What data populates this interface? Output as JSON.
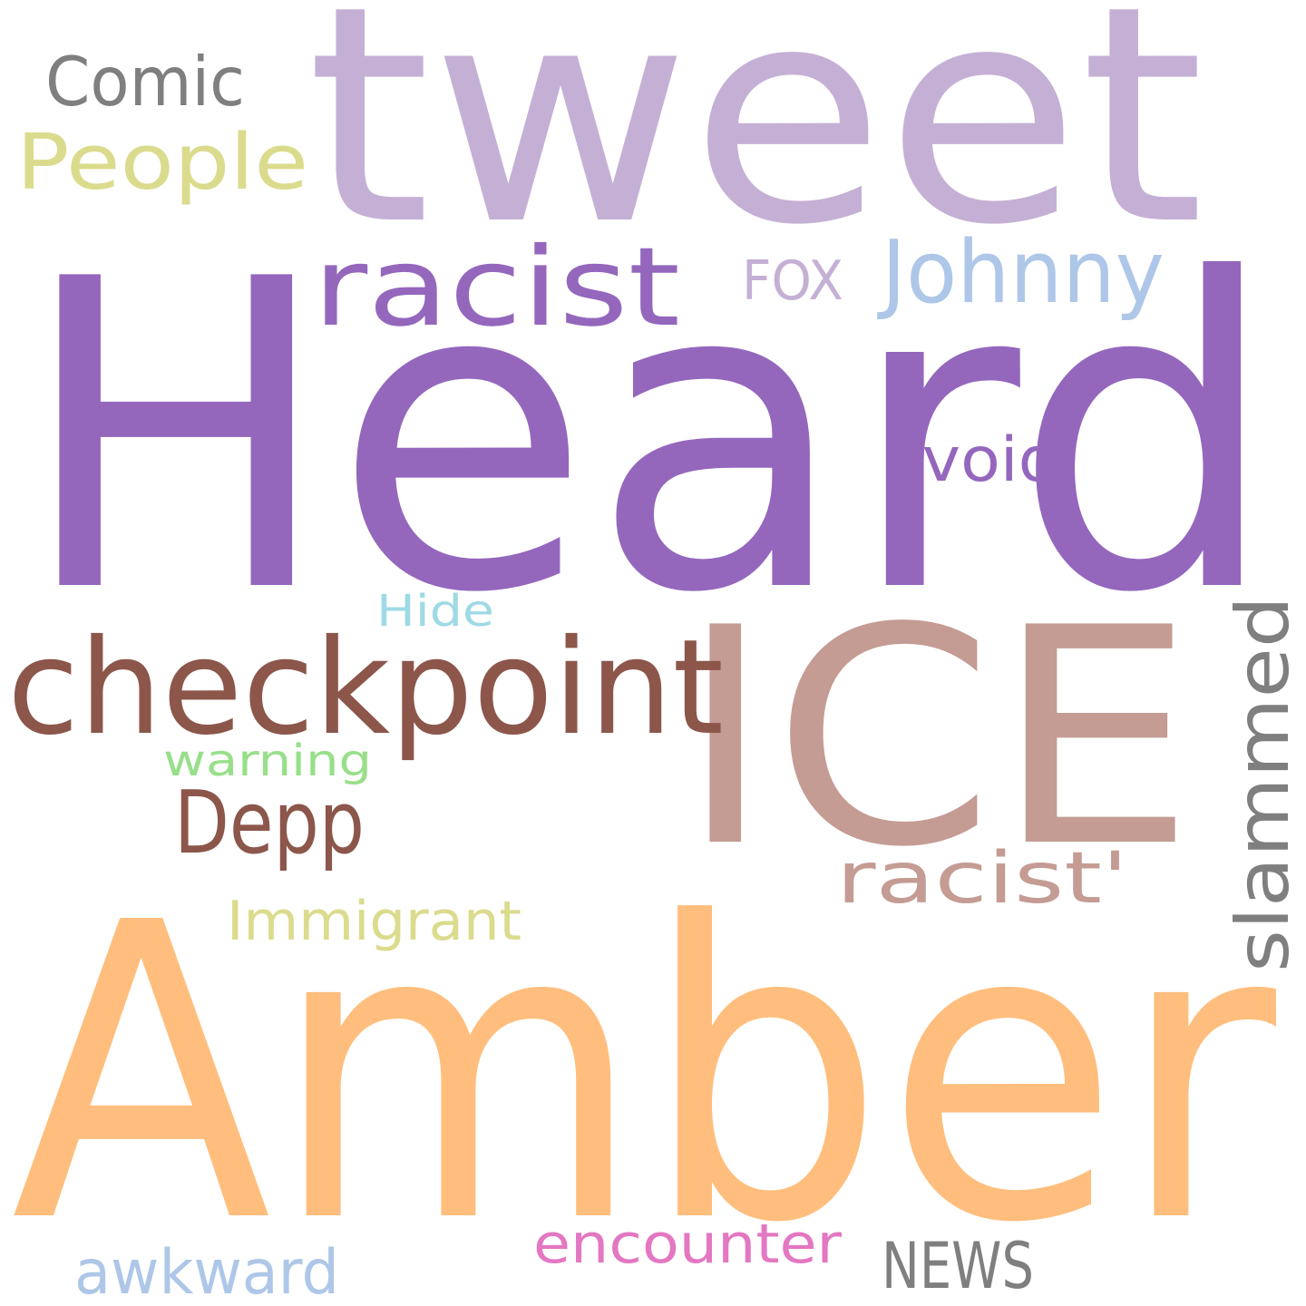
{
  "cloud": {
    "words": [
      {
        "text": "Heard",
        "color": "#9467bd"
      },
      {
        "text": "Amber",
        "color": "#ffbe7d"
      },
      {
        "text": "tweet",
        "color": "#c5b0d5"
      },
      {
        "text": "ICE",
        "color": "#c49c94"
      },
      {
        "text": "checkpoint",
        "color": "#8c564b"
      },
      {
        "text": "racist",
        "color": "#9467bd"
      },
      {
        "text": "Johnny",
        "color": "#aec7e8"
      },
      {
        "text": "slammed",
        "color": "#7f7f7f"
      },
      {
        "text": "Depp",
        "color": "#8c564b"
      },
      {
        "text": "People",
        "color": "#dbdb8d"
      },
      {
        "text": "Comic",
        "color": "#7f7f7f"
      },
      {
        "text": "racist'",
        "color": "#c49c94"
      },
      {
        "text": "avoid",
        "color": "#9467bd"
      },
      {
        "text": "FOX",
        "color": "#c5b0d5"
      },
      {
        "text": "NEWS",
        "color": "#7f7f7f"
      },
      {
        "text": "encounter",
        "color": "#e377c2"
      },
      {
        "text": "awkward",
        "color": "#aec7e8"
      },
      {
        "text": "Immigrant",
        "color": "#dbdb8d"
      },
      {
        "text": "warning",
        "color": "#98df8a"
      },
      {
        "text": "Hide",
        "color": "#9edae5"
      }
    ]
  }
}
